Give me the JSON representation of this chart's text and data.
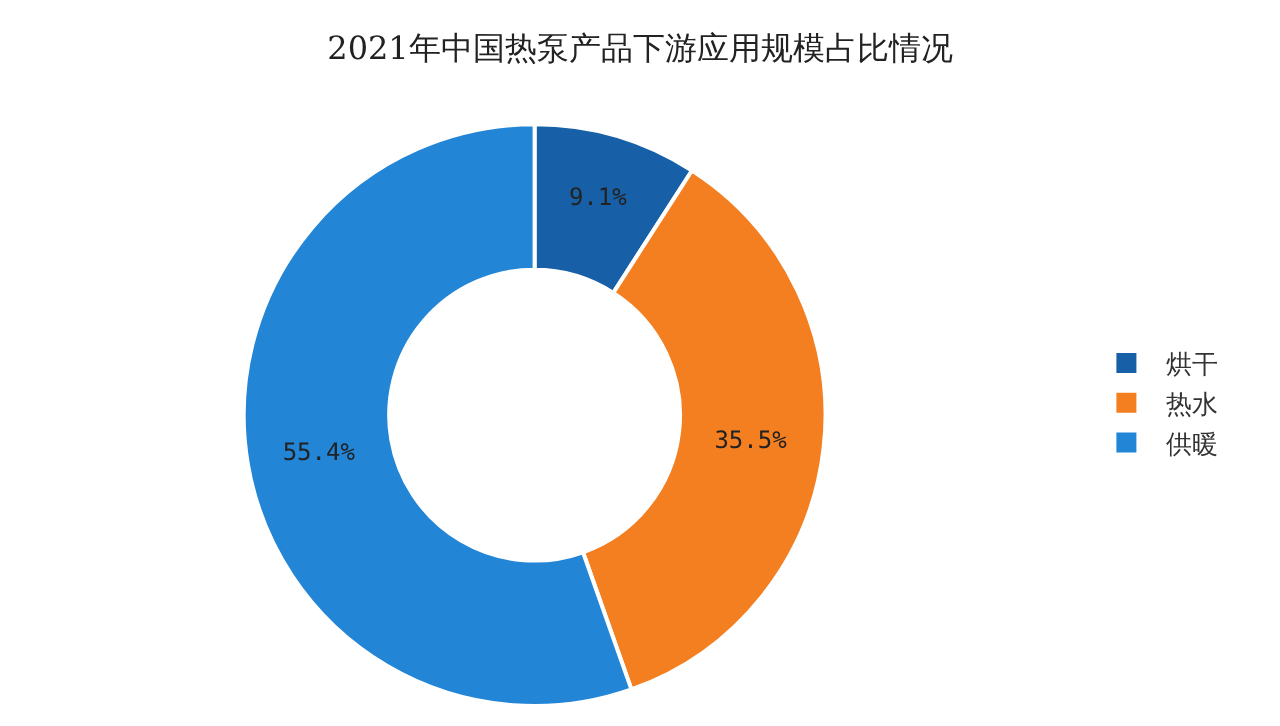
{
  "chart_data": {
    "type": "donut",
    "title": "2021年中国热泵产品下游应用规模占比情况",
    "categories": [
      "烘干",
      "热水",
      "供暖"
    ],
    "values": [
      9.1,
      35.5,
      55.4
    ],
    "colors": [
      "#175fa6",
      "#f47f20",
      "#2385d6"
    ],
    "value_labels": [
      "9.1%",
      "35.5%",
      "55.4%"
    ],
    "legend": "right"
  }
}
